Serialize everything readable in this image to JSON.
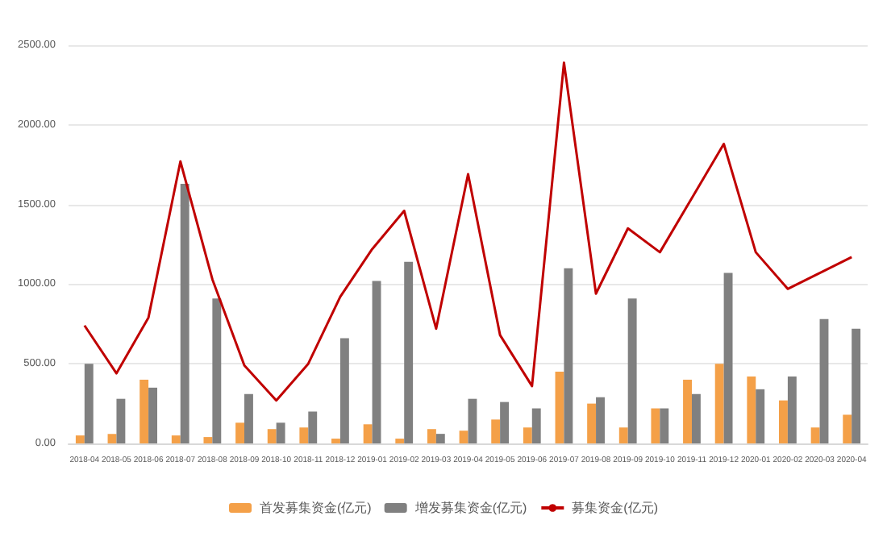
{
  "chart_data": {
    "type": "bar",
    "categories": [
      "2018-04",
      "2018-05",
      "2018-06",
      "2018-07",
      "2018-08",
      "2018-09",
      "2018-10",
      "2018-11",
      "2018-12",
      "2019-01",
      "2019-02",
      "2019-03",
      "2019-04",
      "2019-05",
      "2019-06",
      "2019-07",
      "2019-08",
      "2019-09",
      "2019-10",
      "2019-11",
      "2019-12",
      "2020-01",
      "2020-02",
      "2020-03",
      "2020-04"
    ],
    "series": [
      {
        "name": "首发募集资金(亿元)",
        "color": "#f4a048",
        "values": [
          50,
          60,
          400,
          50,
          40,
          130,
          90,
          100,
          30,
          120,
          30,
          90,
          80,
          150,
          100,
          450,
          250,
          100,
          220,
          400,
          500,
          420,
          270,
          100,
          180
        ]
      },
      {
        "name": "增发募集资金(亿元)",
        "color": "#808080",
        "values": [
          500,
          280,
          350,
          1630,
          910,
          310,
          130,
          200,
          660,
          1020,
          1140,
          60,
          280,
          260,
          220,
          1100,
          290,
          910,
          220,
          310,
          1070,
          340,
          420,
          780,
          720
        ]
      },
      {
        "name": "募集资金(亿元)",
        "type": "line",
        "color": "#c00000",
        "values": [
          740,
          440,
          790,
          1770,
          1030,
          490,
          270,
          500,
          920,
          1220,
          1460,
          720,
          1690,
          680,
          360,
          2390,
          940,
          1350,
          1200,
          1540,
          1880,
          1200,
          970,
          1070,
          1170
        ]
      }
    ],
    "ylim": [
      0,
      2500
    ],
    "yticks": [
      {
        "value": 0,
        "label": "0.00"
      },
      {
        "value": 500,
        "label": "500.00"
      },
      {
        "value": 1000,
        "label": "1000.00"
      },
      {
        "value": 1500,
        "label": "1500.00"
      },
      {
        "value": 2000,
        "label": "2000.00"
      },
      {
        "value": 2500,
        "label": "2500.00"
      }
    ],
    "grid": "y",
    "legend": "bottom",
    "marker": "none"
  }
}
